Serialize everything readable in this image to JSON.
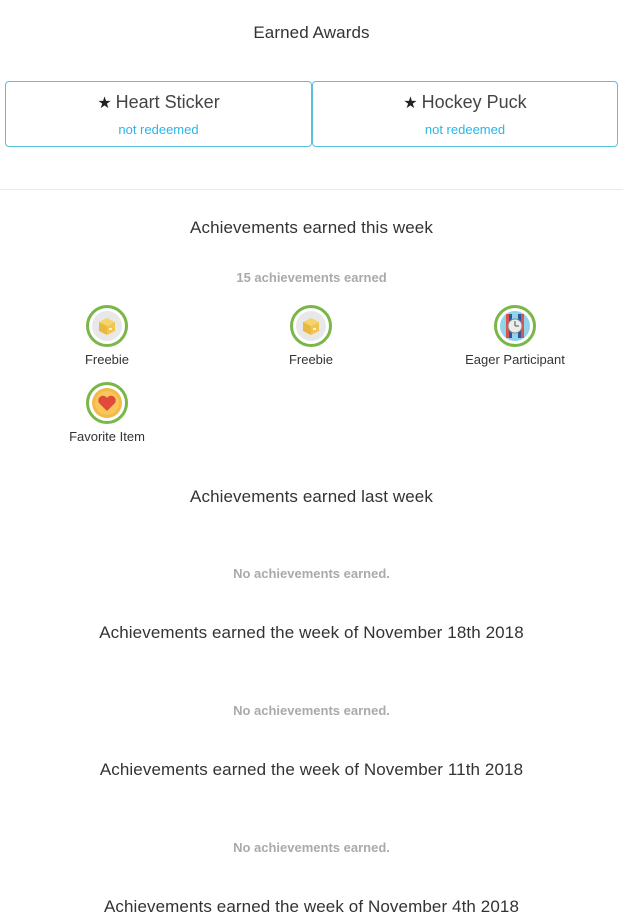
{
  "earned_awards": {
    "title": "Earned Awards",
    "items": [
      {
        "name": "Heart Sticker",
        "status": "not redeemed"
      },
      {
        "name": "Hockey Puck",
        "status": "not redeemed"
      }
    ]
  },
  "weeks": [
    {
      "title": "Achievements earned this week",
      "count_text": "15 achievements earned",
      "badges": [
        {
          "label": "Freebie",
          "icon": "box-icon"
        },
        {
          "label": "Freebie",
          "icon": "box-icon"
        },
        {
          "label": "Eager Participant",
          "icon": "clock-icon"
        },
        {
          "label": "Favorite Item",
          "icon": "heart-icon"
        }
      ]
    },
    {
      "title": "Achievements earned last week",
      "empty_text": "No achievements earned."
    },
    {
      "title": "Achievements earned the week of November 18th 2018",
      "empty_text": "No achievements earned."
    },
    {
      "title": "Achievements earned the week of November 11th 2018",
      "empty_text": "No achievements earned."
    },
    {
      "title": "Achievements earned the week of November 4th 2018"
    }
  ],
  "colors": {
    "accent": "#29b6e8",
    "card_border": "#5bc0de",
    "badge_ring": "#7ab648",
    "muted_text": "#aaaaaa"
  }
}
